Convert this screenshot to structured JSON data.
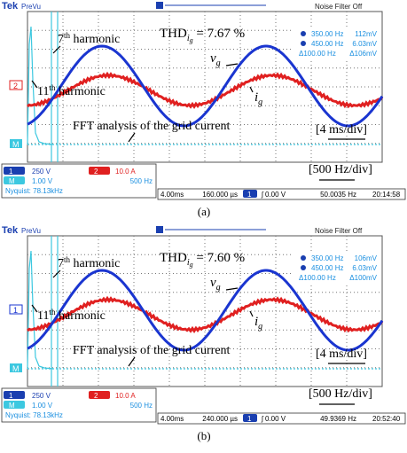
{
  "panels": [
    {
      "brand": "Tek",
      "mode": "PreVu",
      "filter": "Noise Filter Off",
      "ref_marker": "2",
      "math_marker": "M",
      "thd": [
        "THD",
        "i",
        "g",
        " = 7.67 %"
      ],
      "h7": [
        "7",
        "th",
        " harmonic"
      ],
      "h11": [
        "11",
        "th",
        " harmonic"
      ],
      "vg": [
        "v",
        "g"
      ],
      "ig": [
        "i",
        "g"
      ],
      "fft": "FFT analysis of the grid current",
      "time_div": "[4 ms/div]",
      "freq_div": "[500 Hz/div]",
      "cursors": [
        [
          "350.00 Hz",
          "112mV"
        ],
        [
          "450.00 Hz",
          "6.03mV"
        ],
        [
          "Δ100.00 Hz",
          "Δ106mV"
        ]
      ],
      "ch1": [
        "1",
        "250 V"
      ],
      "ch2": [
        "2",
        "10.0 A"
      ],
      "math": [
        "M",
        "1.00 V",
        "500 Hz"
      ],
      "nyquist": "Nyquist: 78.13kHz",
      "timebase": "4.00ms",
      "position": "160.000 µs",
      "trig_ch": "1",
      "trig": "ʃ 0.00 V",
      "freq": "50.0035 Hz",
      "clock": "20:14:58",
      "caption": "(a)"
    },
    {
      "brand": "Tek",
      "mode": "PreVu",
      "filter": "Noise Filter Off",
      "ref_marker": "1",
      "math_marker": "M",
      "thd": [
        "THD",
        "i",
        "g",
        " = 7.60 %"
      ],
      "h7": [
        "7",
        "th",
        " harmonic"
      ],
      "h11": [
        "11",
        "th",
        " harmonic"
      ],
      "vg": [
        "v",
        "g"
      ],
      "ig": [
        "i",
        "g"
      ],
      "fft": "FFT analysis of the grid current",
      "time_div": "[4 ms/div]",
      "freq_div": "[500 Hz/div]",
      "cursors": [
        [
          "350.00 Hz",
          "106mV"
        ],
        [
          "450.00 Hz",
          "6.03mV"
        ],
        [
          "Δ100.00 Hz",
          "Δ100mV"
        ]
      ],
      "ch1": [
        "1",
        "250 V"
      ],
      "ch2": [
        "2",
        "10.0 A"
      ],
      "math": [
        "M",
        "1.00 V",
        "500 Hz"
      ],
      "nyquist": "Nyquist: 78.13kHz",
      "timebase": "4.00ms",
      "position": "240.000 µs",
      "trig_ch": "1",
      "trig": "ʃ 0.00 V",
      "freq": "49.9369 Hz",
      "clock": "20:52:40",
      "caption": "(b)"
    }
  ]
}
